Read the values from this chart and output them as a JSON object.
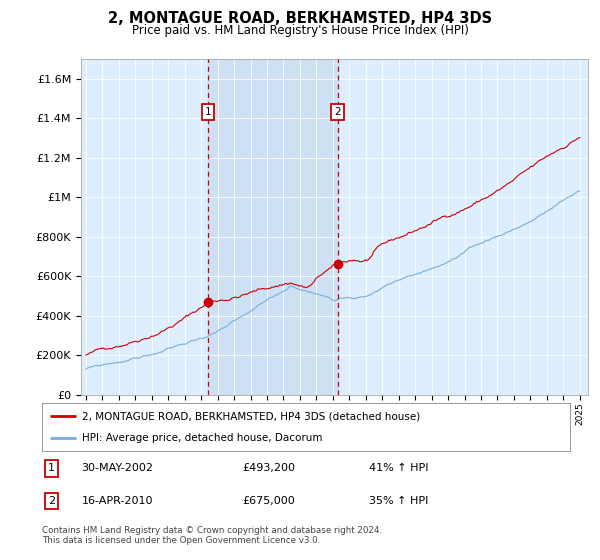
{
  "title": "2, MONTAGUE ROAD, BERKHAMSTED, HP4 3DS",
  "subtitle": "Price paid vs. HM Land Registry's House Price Index (HPI)",
  "red_label": "2, MONTAGUE ROAD, BERKHAMSTED, HP4 3DS (detached house)",
  "blue_label": "HPI: Average price, detached house, Dacorum",
  "sale1_date": "30-MAY-2002",
  "sale1_price": "£493,200",
  "sale1_pct": "41% ↑ HPI",
  "sale2_date": "16-APR-2010",
  "sale2_price": "£675,000",
  "sale2_pct": "35% ↑ HPI",
  "footnote1": "Contains HM Land Registry data © Crown copyright and database right 2024.",
  "footnote2": "This data is licensed under the Open Government Licence v3.0.",
  "ylim": [
    0,
    1700000
  ],
  "yticks": [
    0,
    200000,
    400000,
    600000,
    800000,
    1000000,
    1200000,
    1400000,
    1600000
  ],
  "ytick_labels": [
    "£0",
    "£200K",
    "£400K",
    "£600K",
    "£800K",
    "£1M",
    "£1.2M",
    "£1.4M",
    "£1.6M"
  ],
  "xlim_start": 1994.7,
  "xlim_end": 2025.5,
  "bg_color": "#ddeeff",
  "shade_color": "#c8dcf0",
  "red_color": "#cc0000",
  "blue_color": "#7aaddb",
  "sale1_year": 2002.41,
  "sale2_year": 2010.29,
  "sale1_val": 493200,
  "sale2_val": 675000
}
